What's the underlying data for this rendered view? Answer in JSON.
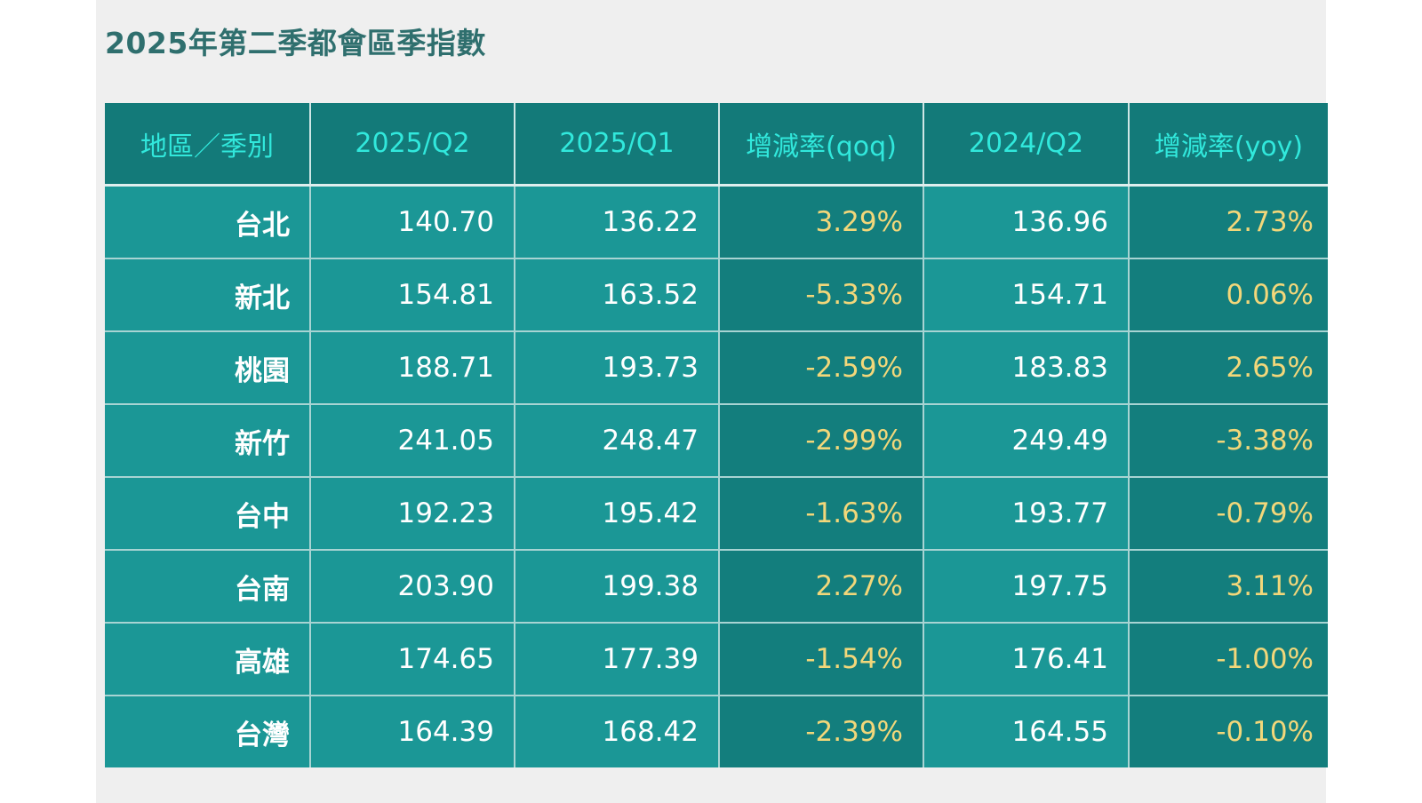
{
  "title": "2025年第二季都會區季指數",
  "colors": {
    "title": "#2f6f6e",
    "header_bg": "#137a79",
    "header_text": "#31e8dc",
    "cell_bg": "#1b9796",
    "rate_bg": "#137e7d",
    "value_text": "#ffffff",
    "rate_text": "#f2d77a"
  },
  "table": {
    "headers": [
      "地區／季別",
      "2025/Q2",
      "2025/Q1",
      "增減率(qoq)",
      "2024/Q2",
      "增減率(yoy)"
    ],
    "rows": [
      {
        "region": "台北",
        "q2_2025": "140.70",
        "q1_2025": "136.22",
        "qoq": "3.29%",
        "q2_2024": "136.96",
        "yoy": "2.73%"
      },
      {
        "region": "新北",
        "q2_2025": "154.81",
        "q1_2025": "163.52",
        "qoq": "-5.33%",
        "q2_2024": "154.71",
        "yoy": "0.06%"
      },
      {
        "region": "桃園",
        "q2_2025": "188.71",
        "q1_2025": "193.73",
        "qoq": "-2.59%",
        "q2_2024": "183.83",
        "yoy": "2.65%"
      },
      {
        "region": "新竹",
        "q2_2025": "241.05",
        "q1_2025": "248.47",
        "qoq": "-2.99%",
        "q2_2024": "249.49",
        "yoy": "-3.38%"
      },
      {
        "region": "台中",
        "q2_2025": "192.23",
        "q1_2025": "195.42",
        "qoq": "-1.63%",
        "q2_2024": "193.77",
        "yoy": "-0.79%"
      },
      {
        "region": "台南",
        "q2_2025": "203.90",
        "q1_2025": "199.38",
        "qoq": "2.27%",
        "q2_2024": "197.75",
        "yoy": "3.11%"
      },
      {
        "region": "高雄",
        "q2_2025": "174.65",
        "q1_2025": "177.39",
        "qoq": "-1.54%",
        "q2_2024": "176.41",
        "yoy": "-1.00%"
      },
      {
        "region": "台灣",
        "q2_2025": "164.39",
        "q1_2025": "168.42",
        "qoq": "-2.39%",
        "q2_2024": "164.55",
        "yoy": "-0.10%"
      }
    ]
  }
}
